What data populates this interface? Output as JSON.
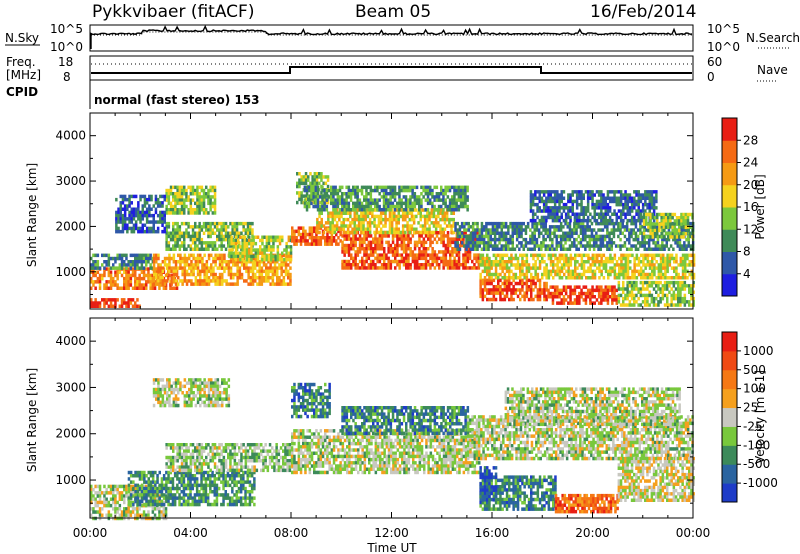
{
  "header": {
    "station": "Pykkvibaer (fitACF)",
    "beam": "Beam 05",
    "date": "16/Feb/2014"
  },
  "noise_panel": {
    "left_label": "N.Sky",
    "right_label": "N.Search",
    "left_ticks": [
      "10^5",
      "10^0"
    ],
    "right_ticks": [
      "10^5",
      "10^0"
    ]
  },
  "freq_panel": {
    "left_label_1": "Freq.",
    "left_label_2": "[MHz]",
    "left_ticks": [
      "18",
      "8"
    ],
    "right_label": "Nave",
    "right_ticks": [
      "60",
      "0"
    ],
    "cpid_label": "CPID",
    "cpid_text": "normal (fast stereo) 153"
  },
  "x_axis": {
    "label": "Time UT",
    "ticks": [
      "00:00",
      "04:00",
      "08:00",
      "12:00",
      "16:00",
      "20:00",
      "00:00"
    ]
  },
  "chart_data": [
    {
      "type": "heatmap",
      "title": "",
      "ylabel": "Slant Range [km]",
      "xlabel": "",
      "x_range_hours": [
        0,
        24
      ],
      "ylim": [
        180,
        4500
      ],
      "y_ticks": [
        1000,
        2000,
        3000,
        4000
      ],
      "colorbar": {
        "label": "Power [dB]",
        "ticks": [
          "4",
          "8",
          "12",
          "16",
          "20",
          "24",
          "28"
        ],
        "colors": [
          "#1e1ee0",
          "#2f58a8",
          "#3f8a58",
          "#7cc83c",
          "#f5d21e",
          "#f59a14",
          "#f56a14",
          "#e81e14"
        ]
      },
      "regions": [
        {
          "t": [
            0.0,
            2.0
          ],
          "r": [
            220,
            420
          ],
          "level": 0.95
        },
        {
          "t": [
            0.0,
            3.5
          ],
          "r": [
            650,
            1100
          ],
          "level": 0.8
        },
        {
          "t": [
            0.0,
            2.5
          ],
          "r": [
            1100,
            1400
          ],
          "level": 0.25
        },
        {
          "t": [
            2.5,
            8.0
          ],
          "r": [
            700,
            1400
          ],
          "level": 0.7
        },
        {
          "t": [
            3.0,
            5.0
          ],
          "r": [
            2300,
            2900
          ],
          "level": 0.45
        },
        {
          "t": [
            3.0,
            6.5
          ],
          "r": [
            1500,
            2100
          ],
          "level": 0.4
        },
        {
          "t": [
            5.5,
            8.0
          ],
          "r": [
            1300,
            1800
          ],
          "level": 0.5
        },
        {
          "t": [
            1.0,
            3.0
          ],
          "r": [
            1900,
            2700
          ],
          "level": 0.15
        },
        {
          "t": [
            8.0,
            10.0
          ],
          "r": [
            1600,
            2000
          ],
          "level": 0.85
        },
        {
          "t": [
            10.0,
            15.5
          ],
          "r": [
            1100,
            1900
          ],
          "level": 0.88
        },
        {
          "t": [
            9.0,
            14.5
          ],
          "r": [
            1900,
            2400
          ],
          "level": 0.6
        },
        {
          "t": [
            8.2,
            9.5
          ],
          "r": [
            2500,
            3200
          ],
          "level": 0.4
        },
        {
          "t": [
            8.5,
            15.0
          ],
          "r": [
            2400,
            2900
          ],
          "level": 0.3
        },
        {
          "t": [
            15.5,
            18.2
          ],
          "r": [
            400,
            850
          ],
          "level": 0.9
        },
        {
          "t": [
            18.2,
            21.0
          ],
          "r": [
            280,
            700
          ],
          "level": 0.95
        },
        {
          "t": [
            15.5,
            24.0
          ],
          "r": [
            850,
            1400
          ],
          "level": 0.55
        },
        {
          "t": [
            14.5,
            24.0
          ],
          "r": [
            1500,
            2100
          ],
          "level": 0.25
        },
        {
          "t": [
            17.5,
            22.5
          ],
          "r": [
            2100,
            2800
          ],
          "level": 0.18
        },
        {
          "t": [
            21.0,
            24.0
          ],
          "r": [
            300,
            800
          ],
          "level": 0.45
        },
        {
          "t": [
            22.0,
            24.0
          ],
          "r": [
            1800,
            2300
          ],
          "level": 0.45
        }
      ]
    },
    {
      "type": "heatmap",
      "title": "",
      "ylabel": "Slant Range [km]",
      "xlabel": "Time UT",
      "x_range_hours": [
        0,
        24
      ],
      "ylim": [
        180,
        4500
      ],
      "y_ticks": [
        1000,
        2000,
        3000,
        4000
      ],
      "colorbar": {
        "label": "Velocity [m s-1]",
        "ticks": [
          "1000",
          "500",
          "100",
          "25",
          "-25",
          "-100",
          "-500",
          "-1000"
        ],
        "colors": [
          "#1e3cc8",
          "#2a64a0",
          "#3c8a5a",
          "#78c83c",
          "#c8c8c0",
          "#f5a01e",
          "#f57814",
          "#f04a14",
          "#e81e14"
        ]
      },
      "regions": [
        {
          "t": [
            0.0,
            3.0
          ],
          "r": [
            200,
            900
          ],
          "level": 0.45
        },
        {
          "t": [
            1.5,
            6.5
          ],
          "r": [
            500,
            1200
          ],
          "level": 0.25
        },
        {
          "t": [
            3.0,
            8.0
          ],
          "r": [
            1200,
            1800
          ],
          "level": 0.4
        },
        {
          "t": [
            2.5,
            5.5
          ],
          "r": [
            2600,
            3200
          ],
          "level": 0.45
        },
        {
          "t": [
            8.0,
            15.5
          ],
          "r": [
            1200,
            2100
          ],
          "level": 0.45
        },
        {
          "t": [
            8.0,
            9.5
          ],
          "r": [
            2400,
            3100
          ],
          "level": 0.2
        },
        {
          "t": [
            10.0,
            15.0
          ],
          "r": [
            2000,
            2600
          ],
          "level": 0.2
        },
        {
          "t": [
            15.5,
            18.5
          ],
          "r": [
            400,
            1100
          ],
          "level": 0.22
        },
        {
          "t": [
            18.5,
            21.0
          ],
          "r": [
            300,
            700
          ],
          "level": 0.8
        },
        {
          "t": [
            15.0,
            24.0
          ],
          "r": [
            1500,
            2400
          ],
          "level": 0.45
        },
        {
          "t": [
            16.5,
            23.5
          ],
          "r": [
            2200,
            3000
          ],
          "level": 0.45
        },
        {
          "t": [
            21.0,
            24.0
          ],
          "r": [
            600,
            1500
          ],
          "level": 0.5
        },
        {
          "t": [
            15.5,
            16.2
          ],
          "r": [
            600,
            1300
          ],
          "level": 0.05
        }
      ]
    }
  ]
}
